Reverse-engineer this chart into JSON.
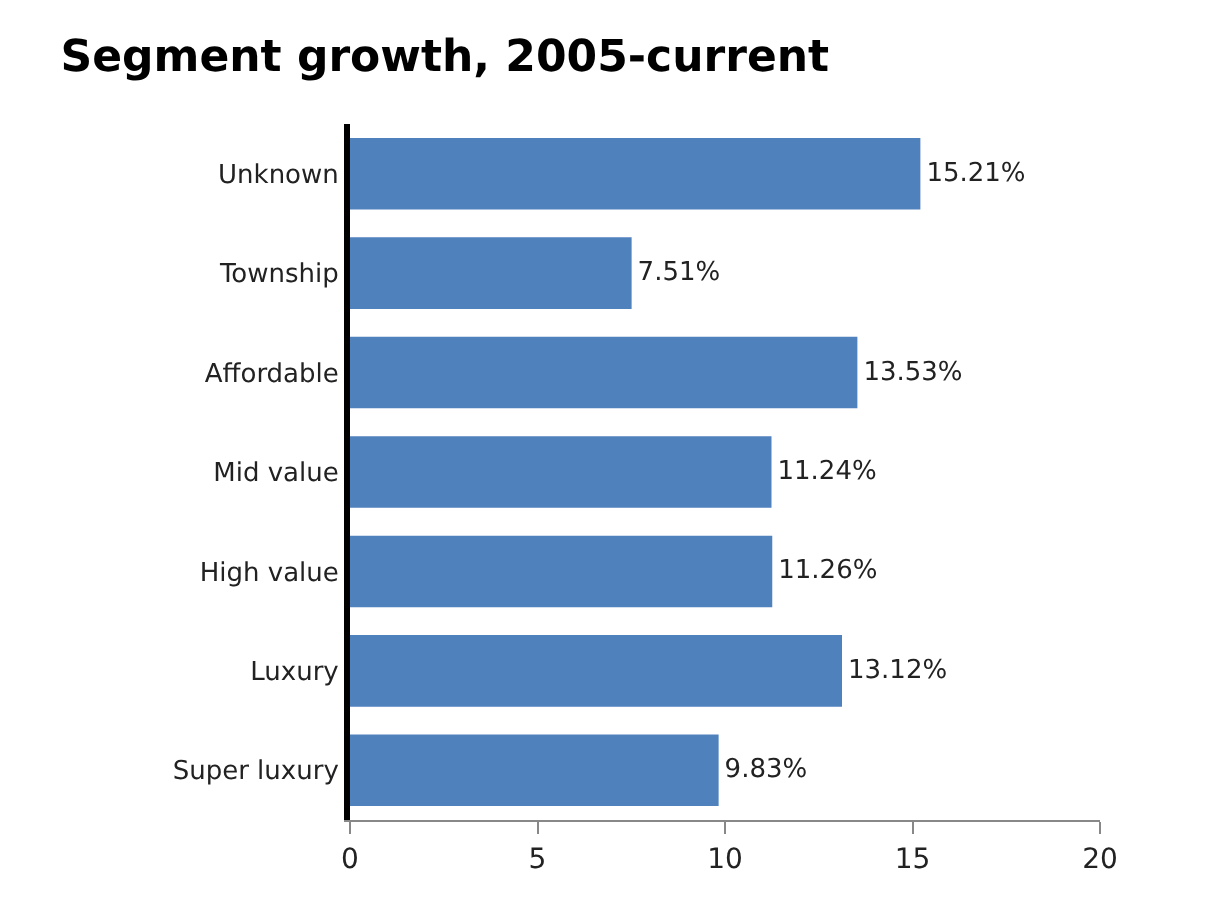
{
  "chart_data": {
    "type": "bar",
    "orientation": "horizontal",
    "title": "Segment growth, 2005-current",
    "categories": [
      "Unknown",
      "Township",
      "Affordable",
      "Mid value",
      "High value",
      "Luxury",
      "Super luxury"
    ],
    "values": [
      15.21,
      7.51,
      13.53,
      11.24,
      11.26,
      13.12,
      9.83
    ],
    "value_labels": [
      "15.21%",
      "7.51%",
      "13.53%",
      "11.24%",
      "11.26%",
      "13.12%",
      "9.83%"
    ],
    "color": "#4f81bd",
    "xlim": [
      0,
      20
    ],
    "xticks": [
      0,
      5,
      10,
      15,
      20
    ],
    "grid": false
  }
}
